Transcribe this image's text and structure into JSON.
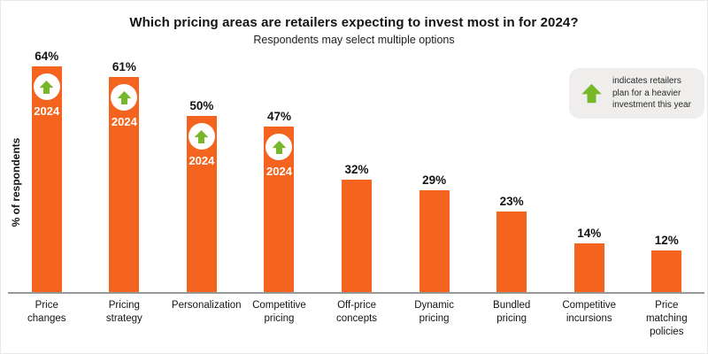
{
  "title": "Which pricing areas are retailers expecting to invest most in for 2024?",
  "subtitle": "Respondents may select multiple options",
  "ylabel": "% of respondents",
  "legend": {
    "text": "indicates retailers plan for a heavier investment this year",
    "icon": "arrow-up-icon"
  },
  "badge_year": "2024",
  "colors": {
    "bar_orange": "#F4641E",
    "arrow_green": "#76B82A",
    "legend_bg": "#EFEEEC",
    "axis_gray": "#989898",
    "text_dark": "#141414"
  },
  "chart_data": {
    "type": "bar",
    "title": "Which pricing areas are retailers expecting to invest most in for 2024?",
    "subtitle": "Respondents may select multiple options",
    "xlabel": "",
    "ylabel": "% of respondents",
    "ylim": [
      0,
      70
    ],
    "grid": false,
    "legend_position": "top-right",
    "categories": [
      "Price changes",
      "Pricing strategy",
      "Personalization",
      "Competitive pricing",
      "Off-price concepts",
      "Dynamic pricing",
      "Bundled pricing",
      "Competitive incursions",
      "Price matching policies"
    ],
    "values": [
      64,
      61,
      50,
      47,
      32,
      29,
      23,
      14,
      12
    ],
    "value_labels": [
      "64%",
      "61%",
      "50%",
      "47%",
      "32%",
      "29%",
      "23%",
      "14%",
      "12%"
    ],
    "heavier_investment_2024": [
      true,
      true,
      true,
      true,
      false,
      false,
      false,
      false,
      false
    ],
    "badge_label": "2024"
  }
}
